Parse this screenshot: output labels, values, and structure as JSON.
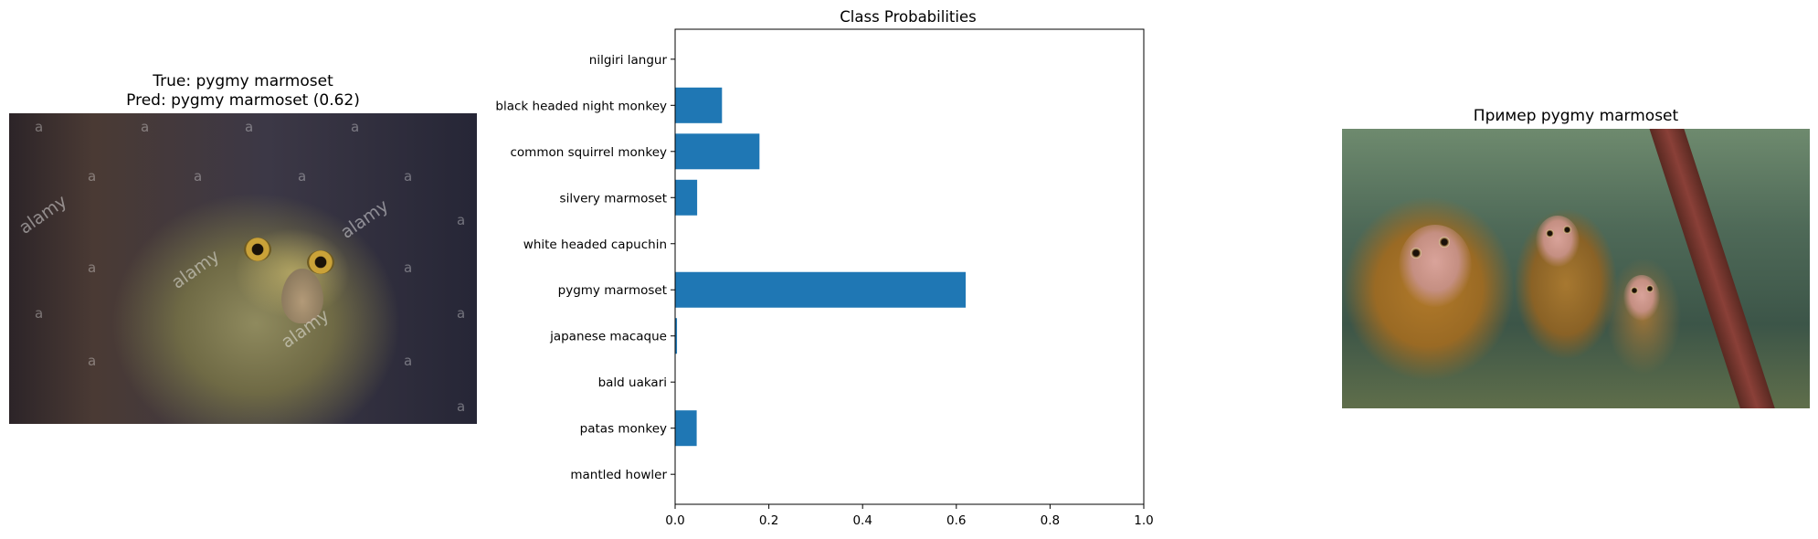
{
  "left_panel": {
    "title_line1": "True: pygmy marmoset",
    "title_line2": "Pred: pygmy marmoset (0.62)",
    "watermark_text": "alamy",
    "watermark_letter": "a"
  },
  "right_panel": {
    "title": "Пример pygmy marmoset"
  },
  "chart_data": {
    "type": "bar",
    "orientation": "horizontal",
    "title": "Class Probabilities",
    "xlabel": "",
    "ylabel": "",
    "xlim": [
      0,
      1.0
    ],
    "xticks": [
      "0.0",
      "0.2",
      "0.4",
      "0.6",
      "0.8",
      "1.0"
    ],
    "grid": false,
    "bar_color": "#1f77b4",
    "categories": [
      "mantled howler",
      "patas monkey",
      "bald uakari",
      "japanese macaque",
      "pygmy marmoset",
      "white headed capuchin",
      "silvery marmoset",
      "common squirrel monkey",
      "black headed night monkey",
      "nilgiri langur"
    ],
    "values": [
      0.0,
      0.046,
      0.0,
      0.004,
      0.62,
      0.0,
      0.047,
      0.18,
      0.1,
      0.0
    ]
  }
}
